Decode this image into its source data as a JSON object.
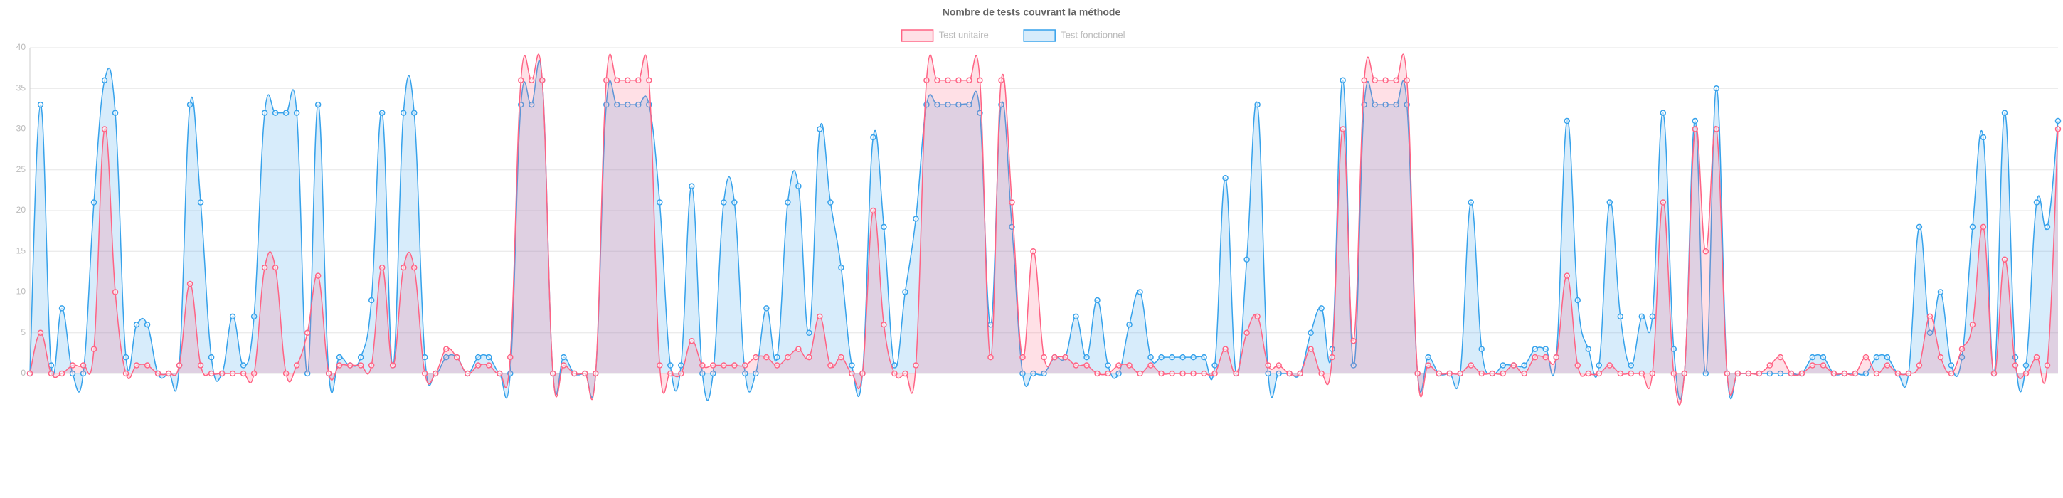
{
  "chart_data": {
    "type": "area",
    "title": "Nombre de tests couvrant la méthode",
    "legend": "top",
    "grid": true,
    "ylim": [
      0,
      40
    ],
    "yticks": [
      0,
      5,
      10,
      15,
      20,
      25,
      30,
      35,
      40
    ],
    "categories": [
      null,
      null,
      null,
      null,
      null,
      null,
      null,
      null,
      null,
      null,
      null,
      null,
      null,
      null,
      null,
      null,
      null,
      null,
      null,
      null,
      null,
      null,
      null,
      null,
      null,
      null,
      null,
      null,
      null,
      null,
      null,
      null,
      null,
      null,
      null,
      null,
      null,
      null,
      null,
      null,
      null,
      null,
      null,
      null,
      null,
      null,
      null,
      null,
      null,
      null,
      null,
      null,
      null,
      null,
      null,
      null,
      null,
      null,
      null,
      null,
      null,
      null,
      null,
      null,
      null,
      null,
      null,
      null,
      null,
      null,
      null,
      null,
      null,
      null,
      null,
      null,
      null,
      null,
      null,
      null,
      null,
      null,
      null,
      null,
      null,
      null,
      null,
      null,
      null,
      null,
      null,
      null,
      null,
      null,
      null,
      null,
      null,
      null,
      null,
      null,
      null,
      null,
      null,
      null,
      null,
      null,
      null,
      null,
      null,
      null,
      null,
      null,
      null,
      null,
      null,
      null,
      null,
      null,
      null,
      null,
      null,
      null,
      null,
      null,
      null,
      null,
      null,
      null,
      null,
      null,
      null,
      null,
      null,
      null,
      null,
      null,
      null,
      null,
      null,
      null,
      null,
      null,
      null,
      null,
      null,
      null,
      null,
      null,
      null,
      null,
      null,
      null,
      null,
      null,
      null,
      null,
      null,
      null,
      null,
      null,
      null,
      null,
      null,
      null,
      null,
      null,
      null,
      null,
      null,
      null,
      null,
      null,
      null,
      null,
      null,
      null,
      null,
      null,
      null,
      null,
      null,
      null,
      null,
      null,
      null,
      null,
      null,
      null,
      null,
      null,
      null
    ],
    "series": [
      {
        "name": "Test unitaire",
        "color": "#ff6384",
        "values": [
          0,
          5,
          0,
          0,
          1,
          1,
          3,
          30,
          10,
          0,
          1,
          1,
          0,
          0,
          1,
          11,
          1,
          0,
          0,
          0,
          0,
          0,
          13,
          13,
          0,
          1,
          5,
          12,
          0,
          1,
          1,
          1,
          1,
          13,
          1,
          13,
          13,
          0,
          0,
          3,
          2,
          0,
          1,
          1,
          0,
          2,
          36,
          36,
          36,
          0,
          1,
          0,
          0,
          0,
          36,
          36,
          36,
          36,
          36,
          1,
          0,
          0,
          4,
          1,
          1,
          1,
          1,
          1,
          2,
          2,
          1,
          2,
          3,
          2,
          7,
          1,
          2,
          0,
          0,
          20,
          6,
          0,
          0,
          1,
          36,
          36,
          36,
          36,
          36,
          36,
          2,
          36,
          21,
          2,
          15,
          2,
          2,
          2,
          1,
          1,
          0,
          0,
          1,
          1,
          0,
          1,
          0,
          0,
          0,
          0,
          0,
          0,
          3,
          0,
          5,
          7,
          1,
          1,
          0,
          0,
          3,
          0,
          2,
          30,
          4,
          36,
          36,
          36,
          36,
          36,
          0,
          1,
          0,
          0,
          0,
          1,
          0,
          0,
          0,
          1,
          0,
          2,
          2,
          2,
          12,
          1,
          0,
          0,
          1,
          0,
          0,
          0,
          0,
          21,
          0,
          0,
          30,
          15,
          30,
          0,
          0,
          0,
          0,
          1,
          2,
          0,
          0,
          1,
          1,
          0,
          0,
          0,
          2,
          0,
          1,
          0,
          0,
          1,
          7,
          2,
          0,
          3,
          6,
          18,
          0,
          14,
          1,
          0,
          2,
          1,
          30
        ]
      },
      {
        "name": "Test fonctionnel",
        "color": "#36a2eb",
        "values": [
          0,
          33,
          1,
          8,
          0,
          0,
          21,
          36,
          32,
          2,
          6,
          6,
          0,
          0,
          1,
          33,
          21,
          2,
          0,
          7,
          1,
          7,
          32,
          32,
          32,
          32,
          0,
          33,
          0,
          2,
          1,
          2,
          9,
          32,
          1,
          32,
          32,
          2,
          0,
          2,
          2,
          0,
          2,
          2,
          0,
          0,
          33,
          33,
          36,
          0,
          2,
          0,
          0,
          0,
          33,
          33,
          33,
          33,
          33,
          21,
          1,
          1,
          23,
          0,
          0,
          21,
          21,
          0,
          0,
          8,
          2,
          21,
          23,
          5,
          30,
          21,
          13,
          1,
          0,
          29,
          18,
          1,
          10,
          19,
          33,
          33,
          33,
          33,
          33,
          32,
          6,
          33,
          18,
          0,
          0,
          0,
          2,
          2,
          7,
          2,
          9,
          1,
          0,
          6,
          10,
          2,
          2,
          2,
          2,
          2,
          2,
          1,
          24,
          0,
          14,
          33,
          0,
          0,
          0,
          0,
          5,
          8,
          3,
          36,
          1,
          33,
          33,
          33,
          33,
          33,
          0,
          2,
          0,
          0,
          0,
          21,
          3,
          0,
          1,
          1,
          1,
          3,
          3,
          2,
          31,
          9,
          3,
          1,
          21,
          7,
          1,
          7,
          7,
          32,
          3,
          0,
          31,
          0,
          35,
          0,
          0,
          0,
          0,
          0,
          0,
          0,
          0,
          2,
          2,
          0,
          0,
          0,
          0,
          2,
          2,
          0,
          0,
          18,
          5,
          10,
          1,
          2,
          18,
          29,
          0,
          32,
          2,
          1,
          21,
          18,
          31
        ]
      }
    ]
  }
}
